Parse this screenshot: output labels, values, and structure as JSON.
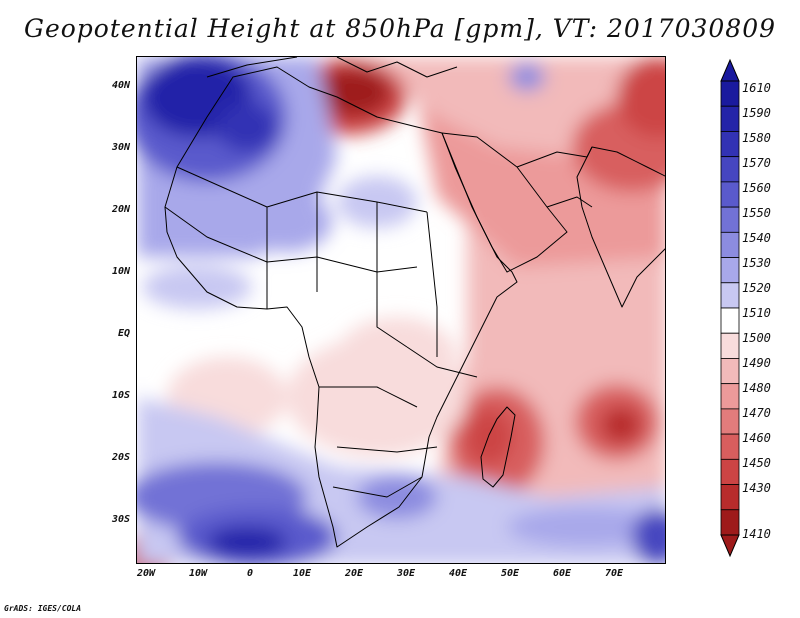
{
  "title": "Geopotential Height at 850hPa [gpm], VT: 2017030809",
  "map": {
    "projection": "lat-lon",
    "lon_range": [
      -25,
      80
    ],
    "lat_range": [
      -37,
      45
    ],
    "lat_ticks": [
      {
        "value": 40,
        "label": "40N"
      },
      {
        "value": 30,
        "label": "30N"
      },
      {
        "value": 20,
        "label": "20N"
      },
      {
        "value": 10,
        "label": "10N"
      },
      {
        "value": 0,
        "label": "EQ"
      },
      {
        "value": -10,
        "label": "10S"
      },
      {
        "value": -20,
        "label": "20S"
      },
      {
        "value": -30,
        "label": "30S"
      }
    ],
    "lon_ticks": [
      {
        "value": -20,
        "label": "20W"
      },
      {
        "value": -10,
        "label": "10W"
      },
      {
        "value": 0,
        "label": "0"
      },
      {
        "value": 10,
        "label": "10E"
      },
      {
        "value": 20,
        "label": "20E"
      },
      {
        "value": 30,
        "label": "30E"
      },
      {
        "value": 40,
        "label": "40E"
      },
      {
        "value": 50,
        "label": "50E"
      },
      {
        "value": 60,
        "label": "60E"
      },
      {
        "value": 70,
        "label": "70E"
      }
    ]
  },
  "colorbar": {
    "levels": [
      {
        "label": "1610",
        "color": "#1a1a9e"
      },
      {
        "label": "1590",
        "color": "#2424a8"
      },
      {
        "label": "1580",
        "color": "#3232b4"
      },
      {
        "label": "1570",
        "color": "#4646c0"
      },
      {
        "label": "1560",
        "color": "#5a5acc"
      },
      {
        "label": "1550",
        "color": "#7272d6"
      },
      {
        "label": "1540",
        "color": "#8c8ce0"
      },
      {
        "label": "1530",
        "color": "#a8a8ea"
      },
      {
        "label": "1520",
        "color": "#c8c8f2"
      },
      {
        "label": "1510",
        "color": "#ffffff"
      },
      {
        "label": "1500",
        "color": "#f8dcdc"
      },
      {
        "label": "1490",
        "color": "#f2baba"
      },
      {
        "label": "1480",
        "color": "#ec9a9a"
      },
      {
        "label": "1470",
        "color": "#e27c7c"
      },
      {
        "label": "1460",
        "color": "#d85e5e"
      },
      {
        "label": "1450",
        "color": "#cc4444"
      },
      {
        "label": "1430",
        "color": "#b82c2c"
      },
      {
        "label": "1410",
        "color": "#9e1a1a"
      }
    ],
    "top_arrow_color": "#1a1a9e",
    "bottom_arrow_color": "#9e1a1a"
  },
  "credit": "GrADS: IGES/COLA"
}
